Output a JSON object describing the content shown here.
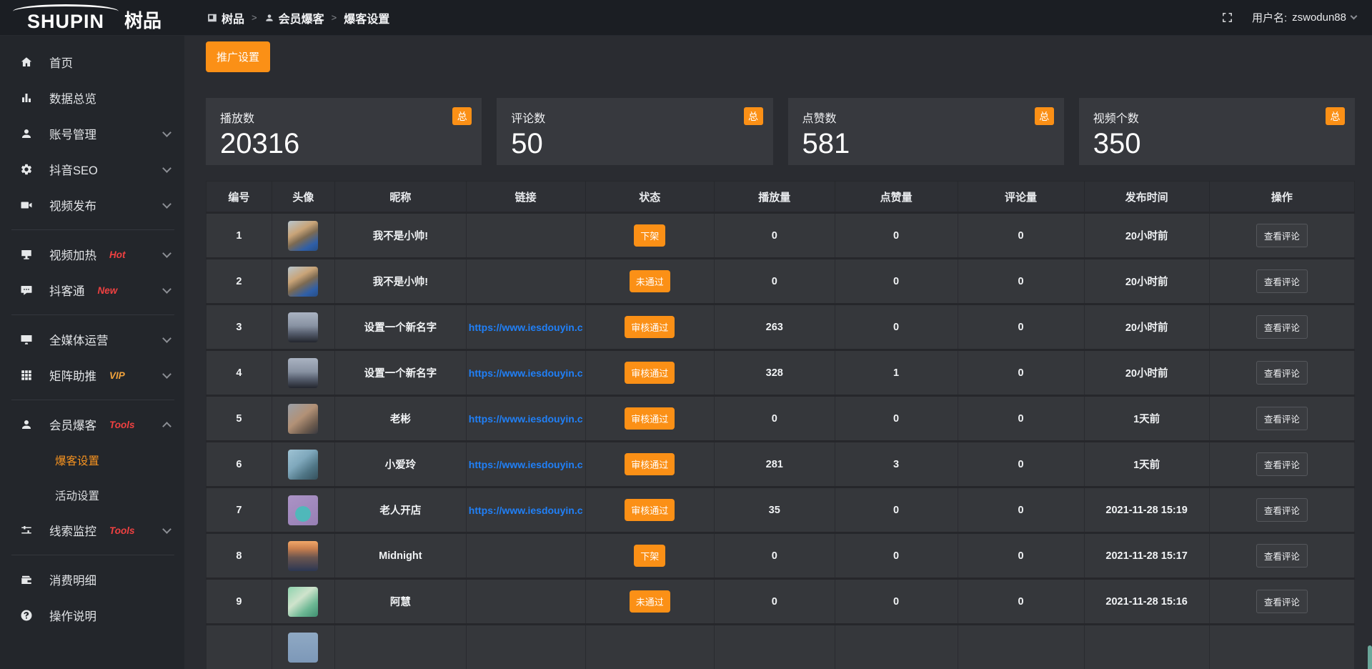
{
  "theme": {
    "accent_orange": "#fb9016",
    "link_blue": "#2080f8",
    "tag_red": "#f04141",
    "tag_gold": "#f2a33c",
    "active_orange": "#f89420"
  },
  "brand": {
    "name_en": "SHUPIN",
    "name_cn": "树品"
  },
  "topbar": {
    "breadcrumb": [
      {
        "label": "树品"
      },
      {
        "label": "会员爆客"
      },
      {
        "label": "爆客设置"
      }
    ],
    "separator": ">",
    "username_label": "用户名:",
    "username": "zswodun88"
  },
  "sidebar": {
    "items": [
      {
        "label": "首页",
        "icon": "home"
      },
      {
        "label": "数据总览",
        "icon": "chart"
      },
      {
        "label": "账号管理",
        "icon": "user",
        "chevron": "down"
      },
      {
        "label": "抖音SEO",
        "icon": "gear",
        "chevron": "down"
      },
      {
        "label": "视频发布",
        "icon": "video",
        "chevron": "down",
        "divider_after": true
      },
      {
        "label": "视频加热",
        "icon": "display",
        "tag": "Hot",
        "tag_style": "red",
        "chevron": "down"
      },
      {
        "label": "抖客通",
        "icon": "comment",
        "tag": "New",
        "tag_style": "red",
        "chevron": "down",
        "divider_after": true
      },
      {
        "label": "全媒体运营",
        "icon": "monitor",
        "chevron": "down"
      },
      {
        "label": "矩阵助推",
        "icon": "grid",
        "tag": "VIP",
        "tag_style": "gold",
        "chevron": "down",
        "divider_after": true
      },
      {
        "label": "会员爆客",
        "icon": "user",
        "tag": "Tools",
        "tag_style": "red",
        "chevron": "up",
        "children": [
          {
            "label": "爆客设置",
            "active": true
          },
          {
            "label": "活动设置",
            "active": false
          }
        ]
      },
      {
        "label": "线索监控",
        "icon": "sliders",
        "tag": "Tools",
        "tag_style": "red",
        "chevron": "down",
        "divider_after": true
      },
      {
        "label": "消费明细",
        "icon": "wallet"
      },
      {
        "label": "操作说明",
        "icon": "question"
      }
    ]
  },
  "main": {
    "promo_button": "推广设置",
    "stat_badge": "总",
    "stats": [
      {
        "label": "播放数",
        "value": "20316"
      },
      {
        "label": "评论数",
        "value": "50"
      },
      {
        "label": "点赞数",
        "value": "581"
      },
      {
        "label": "视频个数",
        "value": "350"
      }
    ],
    "table": {
      "headers": [
        "编号",
        "头像",
        "昵称",
        "链接",
        "状态",
        "播放量",
        "点赞量",
        "评论量",
        "发布时间",
        "操作"
      ],
      "action_label": "查看评论",
      "rows": [
        {
          "id": "1",
          "avatar": "boy",
          "nickname": "我不是小帅!",
          "link": "",
          "status": "下架",
          "plays": "0",
          "likes": "0",
          "comments": "0",
          "published": "20小时前"
        },
        {
          "id": "2",
          "avatar": "boy",
          "nickname": "我不是小帅!",
          "link": "",
          "status": "未通过",
          "plays": "0",
          "likes": "0",
          "comments": "0",
          "published": "20小时前"
        },
        {
          "id": "3",
          "avatar": "dusk",
          "nickname": "设置一个新名字",
          "link": "https://www.iesdouyin.c",
          "status": "审核通过",
          "plays": "263",
          "likes": "0",
          "comments": "0",
          "published": "20小时前"
        },
        {
          "id": "4",
          "avatar": "dusk",
          "nickname": "设置一个新名字",
          "link": "https://www.iesdouyin.c",
          "status": "审核通过",
          "plays": "328",
          "likes": "1",
          "comments": "0",
          "published": "20小时前"
        },
        {
          "id": "5",
          "avatar": "man",
          "nickname": "老彬",
          "link": "https://www.iesdouyin.c",
          "status": "审核通过",
          "plays": "0",
          "likes": "0",
          "comments": "0",
          "published": "1天前"
        },
        {
          "id": "6",
          "avatar": "teal",
          "nickname": "小爱玲",
          "link": "https://www.iesdouyin.c",
          "status": "审核通过",
          "plays": "281",
          "likes": "3",
          "comments": "0",
          "published": "1天前"
        },
        {
          "id": "7",
          "avatar": "purple",
          "nickname": "老人开店",
          "link": "https://www.iesdouyin.c",
          "status": "审核通过",
          "plays": "35",
          "likes": "0",
          "comments": "0",
          "published": "2021-11-28 15:19"
        },
        {
          "id": "8",
          "avatar": "sunset",
          "nickname": "Midnight",
          "link": "",
          "status": "下架",
          "plays": "0",
          "likes": "0",
          "comments": "0",
          "published": "2021-11-28 15:17"
        },
        {
          "id": "9",
          "avatar": "green",
          "nickname": "阿慧",
          "link": "",
          "status": "未通过",
          "plays": "0",
          "likes": "0",
          "comments": "0",
          "published": "2021-11-28 15:16"
        },
        {
          "id": "",
          "avatar": "blue",
          "nickname": "",
          "link": "",
          "status": "",
          "plays": "",
          "likes": "",
          "comments": "",
          "published": "",
          "partial": true
        }
      ]
    }
  }
}
